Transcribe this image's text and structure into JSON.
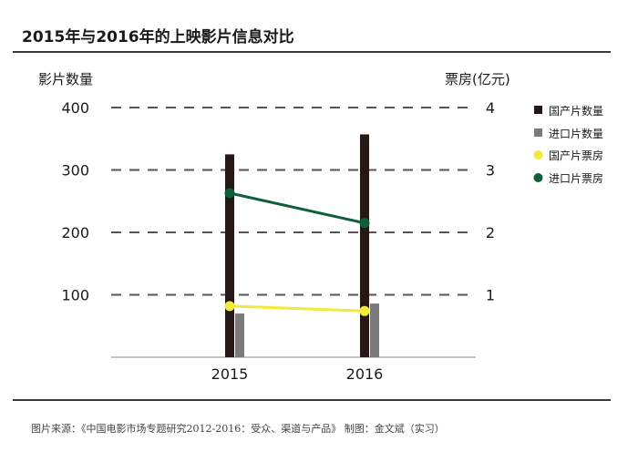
{
  "title": "2015年与2016年的上映影片信息对比",
  "source": "图片来源：《中国电影市场专题研究2012-2016：受众、渠道与产品》 制图：金文斌（实习）",
  "chart_data": {
    "type": "bar",
    "categories": [
      "2015",
      "2016"
    ],
    "left_axis": {
      "label": "影片数量",
      "ylim": [
        0,
        400
      ],
      "ticks": [
        "100",
        "200",
        "300",
        "400"
      ]
    },
    "right_axis": {
      "label": "票房(亿元)",
      "ylim": [
        0,
        4
      ],
      "ticks": [
        "1",
        "2",
        "3",
        "4"
      ]
    },
    "grid": true,
    "legend_position": "right",
    "series": [
      {
        "name": "国产片数量",
        "type": "bar",
        "axis": "left",
        "color": "#231815",
        "values": [
          325,
          357
        ]
      },
      {
        "name": "进口片数量",
        "type": "bar",
        "axis": "left",
        "color": "#7a7a7a",
        "values": [
          70,
          86
        ]
      },
      {
        "name": "国产片票房",
        "type": "line",
        "axis": "right",
        "color": "#f2ea3a",
        "values": [
          0.82,
          0.74
        ]
      },
      {
        "name": "进口片票房",
        "type": "line",
        "axis": "right",
        "color": "#0e5f3a",
        "values": [
          2.63,
          2.15
        ]
      }
    ]
  }
}
